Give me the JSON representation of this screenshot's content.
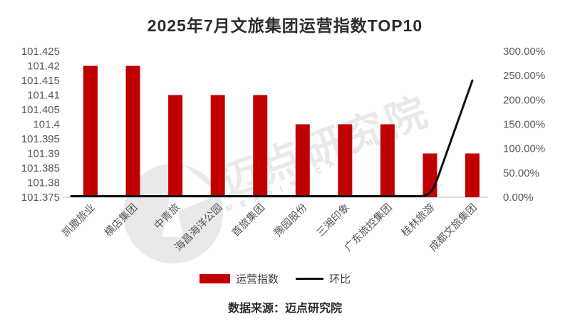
{
  "title": "2025年7月文旅集团运营指数TOP10",
  "source_note": "数据来源：迈点研究院",
  "legend": {
    "bar_label": "运营指数",
    "line_label": "环比"
  },
  "watermark": {
    "logo": "meadin-tower-circle-logo",
    "text_cn": "迈点研究院",
    "text_en": "M E A D I N   A C A D E M Y"
  },
  "colors": {
    "bar": "#c00000",
    "line": "#111111",
    "axis_line": "#c9c9c9",
    "axis_text": "#595959",
    "watermark": "#e9e9e9"
  },
  "chart_data": {
    "type": "bar",
    "title": "2025年7月文旅集团运营指数TOP10",
    "categories": [
      "凯撒旅业",
      "横店集团",
      "中青旅",
      "海昌海洋公园",
      "首旅集团",
      "豫园股份",
      "三湘印象",
      "广东旅控集团",
      "桂林旅游",
      "成都文旅集团"
    ],
    "series": [
      {
        "name": "运营指数",
        "type": "bar",
        "y_axis": "left",
        "values": [
          101.42,
          101.42,
          101.41,
          101.41,
          101.41,
          101.4,
          101.4,
          101.4,
          101.39,
          101.39
        ]
      },
      {
        "name": "环比",
        "type": "line",
        "y_axis": "right",
        "values_percent": [
          0,
          0,
          0,
          0,
          0,
          0,
          0,
          0,
          0,
          240
        ]
      }
    ],
    "left_axis": {
      "min": 101.375,
      "max": 101.425,
      "step": 0.005,
      "tick_labels": [
        "101.375",
        "101.38",
        "101.385",
        "101.39",
        "101.395",
        "101.4",
        "101.405",
        "101.41",
        "101.415",
        "101.42",
        "101.425"
      ]
    },
    "right_axis": {
      "min": 0,
      "max": 300,
      "step": 50,
      "tick_labels": [
        "0.00%",
        "50.00%",
        "100.00%",
        "150.00%",
        "200.00%",
        "250.00%",
        "300.00%"
      ]
    },
    "grid": false,
    "legend_position": "bottom",
    "xlabel": "",
    "ylabel_left": "",
    "ylabel_right": ""
  }
}
